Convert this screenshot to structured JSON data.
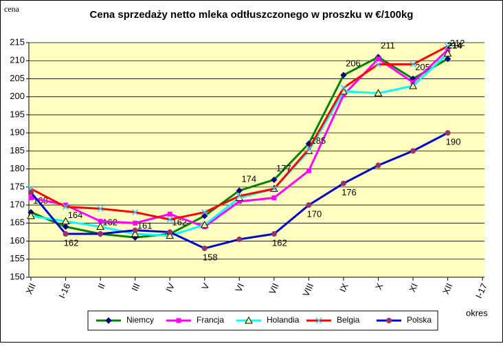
{
  "chart_data": {
    "type": "line",
    "title": "Cena sprzedaży netto mleka odtłuszczonego w proszku w €/100kg",
    "y_label": "cena",
    "x_label": "okres",
    "categories": [
      "XII",
      "I-16",
      "II",
      "III",
      "IV",
      "V",
      "VI",
      "VII",
      "VIII",
      "IX",
      "X",
      "XI",
      "XII",
      "I-17"
    ],
    "ylim": [
      150,
      215
    ],
    "yticks": [
      150,
      155,
      160,
      165,
      170,
      175,
      180,
      185,
      190,
      195,
      200,
      205,
      210,
      215
    ],
    "grid": true,
    "legend": "bottom",
    "series": [
      {
        "name": "Niemcy",
        "color": "#008000",
        "marker": "diamond",
        "marker_color": "#000080",
        "values": [
          168,
          164,
          162,
          161,
          162,
          167,
          174,
          177,
          187,
          206,
          211,
          205,
          210.5,
          null
        ],
        "value_labels": [
          "168",
          "164",
          "162",
          "161",
          "162",
          null,
          "174",
          "177",
          null,
          "206",
          "211",
          "205",
          null,
          null
        ]
      },
      {
        "name": "Francja",
        "color": "#FF00FF",
        "marker": "square",
        "marker_color": "#FF00FF",
        "values": [
          172,
          170,
          165.5,
          165,
          167.5,
          164,
          171,
          172,
          179.5,
          200.5,
          210.5,
          204,
          213,
          null
        ]
      },
      {
        "name": "Holandia",
        "color": "#00FFFF",
        "marker": "triangle",
        "marker_color": "#FFFF99",
        "values": [
          167,
          165.5,
          164,
          162,
          161.5,
          164.5,
          172,
          174.5,
          185,
          201.5,
          201,
          203,
          212,
          null
        ],
        "value_labels": [
          null,
          null,
          null,
          null,
          null,
          null,
          null,
          null,
          "185",
          null,
          null,
          null,
          "212",
          null
        ]
      },
      {
        "name": "Belgia",
        "color": "#FF0000",
        "marker": "x",
        "marker_color": "#33CCFF",
        "values": [
          174.5,
          169.5,
          169,
          168,
          166,
          168,
          172.5,
          174.5,
          185.5,
          202.5,
          209,
          209,
          214,
          null
        ],
        "value_labels": [
          null,
          null,
          null,
          null,
          null,
          null,
          null,
          null,
          null,
          null,
          null,
          null,
          "214",
          null
        ]
      },
      {
        "name": "Polska",
        "color": "#0000CC",
        "marker": "circle",
        "marker_color": "#993366",
        "values": [
          173.5,
          162,
          162,
          163,
          162.5,
          158,
          160.5,
          162,
          170,
          176,
          181,
          185,
          190,
          null
        ],
        "value_labels": [
          null,
          "162",
          null,
          null,
          null,
          "158",
          null,
          "162",
          "170",
          "176",
          null,
          null,
          "190",
          null
        ]
      }
    ]
  }
}
